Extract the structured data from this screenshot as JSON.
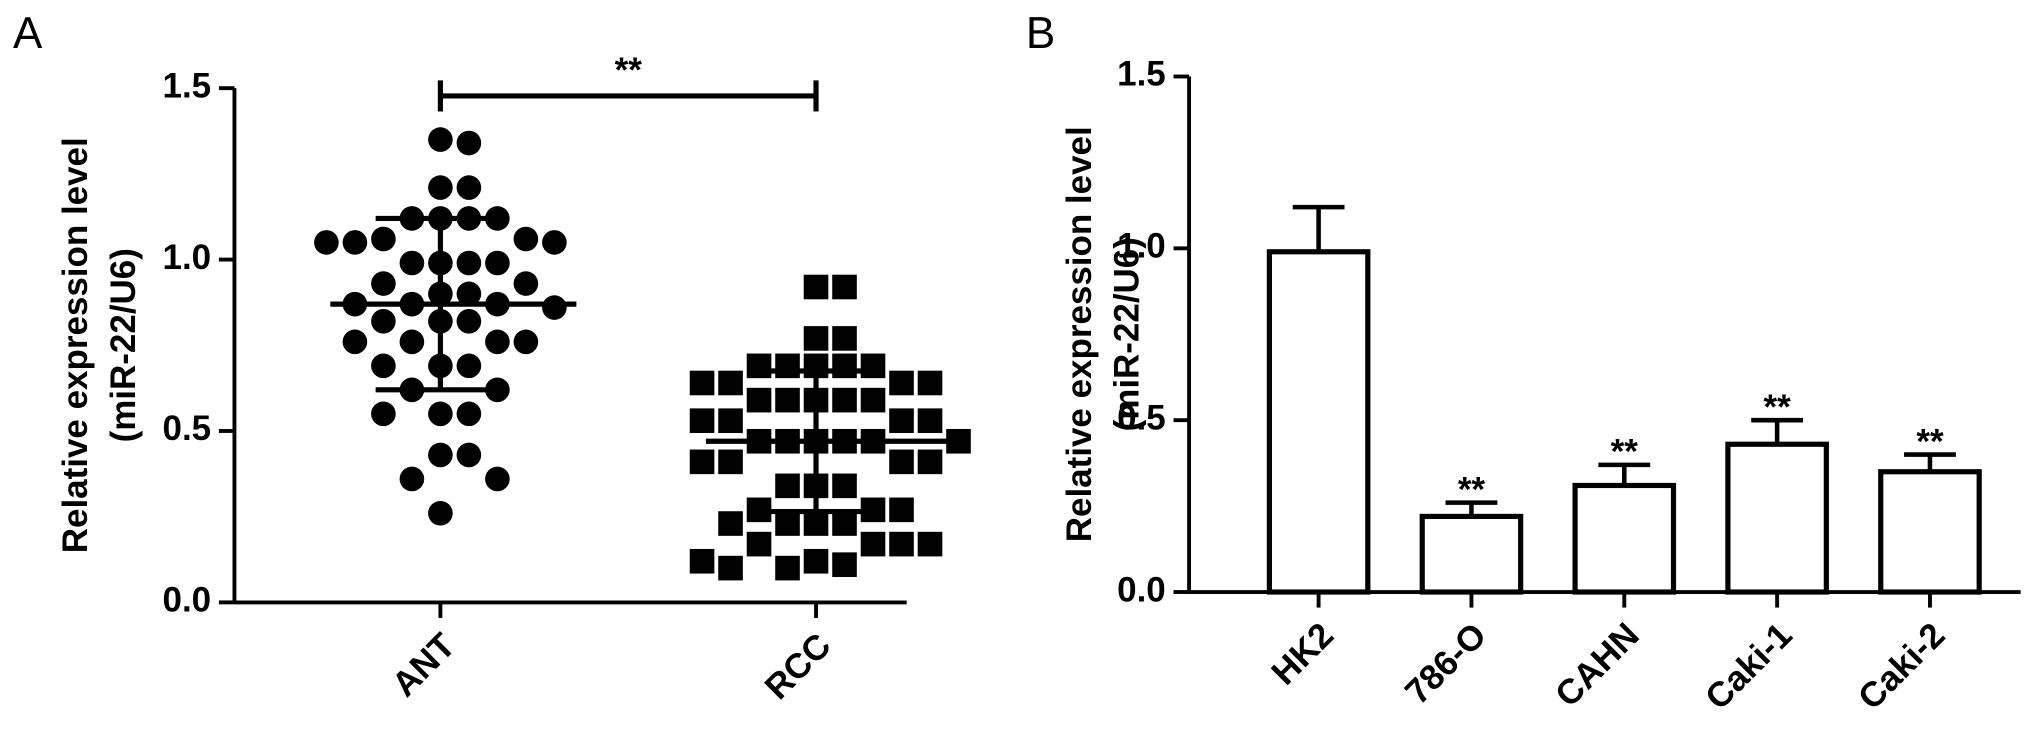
{
  "chart_data": [
    {
      "type": "dot",
      "panel": "A",
      "ylabel": [
        "Relative expression level",
        "(miR-22/U6)"
      ],
      "categories": [
        "ANT",
        "RCC"
      ],
      "groups": [
        {
          "marker": "circle",
          "color": "#000000",
          "values": [
            1.35,
            1.34,
            1.21,
            1.21,
            1.12,
            1.12,
            1.12,
            1.12,
            1.06,
            1.06,
            1.05,
            1.05,
            1.05,
            0.99,
            0.99,
            0.99,
            0.99,
            0.93,
            0.93,
            0.9,
            0.9,
            0.87,
            0.87,
            0.87,
            0.86,
            0.82,
            0.82,
            0.82,
            0.76,
            0.76,
            0.76,
            0.76,
            0.69,
            0.69,
            0.69,
            0.62,
            0.62,
            0.55,
            0.55,
            0.55,
            0.43,
            0.43,
            0.36,
            0.36,
            0.26
          ],
          "mean": 0.87,
          "sd": 0.25
        },
        {
          "marker": "square",
          "color": "#000000",
          "values": [
            0.92,
            0.92,
            0.77,
            0.77,
            0.69,
            0.69,
            0.69,
            0.69,
            0.69,
            0.64,
            0.64,
            0.64,
            0.64,
            0.59,
            0.59,
            0.59,
            0.59,
            0.59,
            0.53,
            0.53,
            0.53,
            0.53,
            0.47,
            0.47,
            0.47,
            0.47,
            0.47,
            0.47,
            0.41,
            0.41,
            0.41,
            0.41,
            0.34,
            0.34,
            0.34,
            0.27,
            0.27,
            0.27,
            0.23,
            0.23,
            0.23,
            0.23,
            0.17,
            0.17,
            0.17,
            0.17,
            0.12,
            0.11,
            0.1,
            0.1,
            0.12
          ],
          "mean": 0.47,
          "sd": 0.205
        }
      ],
      "significance": "**",
      "ylim": [
        0,
        1.5
      ],
      "yticks": [
        {
          "value": 0,
          "label": "0.0"
        },
        0.5,
        {
          "value": 1,
          "label": "1.0"
        },
        1.5
      ]
    },
    {
      "type": "bar",
      "panel": "B",
      "ylabel": [
        "Relative expression level",
        "(miR-22/U6)"
      ],
      "categories": [
        "HK2",
        "786-O",
        "CAHN",
        "Caki-1",
        "Caki-2"
      ],
      "values": [
        0.99,
        0.22,
        0.31,
        0.43,
        0.35
      ],
      "errors": [
        0.13,
        0.04,
        0.06,
        0.07,
        0.05
      ],
      "annotations": [
        null,
        "**",
        "**",
        "**",
        "**"
      ],
      "color": "#ffffff",
      "ylim": [
        0,
        1.5
      ],
      "yticks": [
        {
          "value": 0,
          "label": "0.0"
        },
        0.5,
        {
          "value": 1,
          "label": "1.0"
        },
        1.5
      ]
    }
  ]
}
